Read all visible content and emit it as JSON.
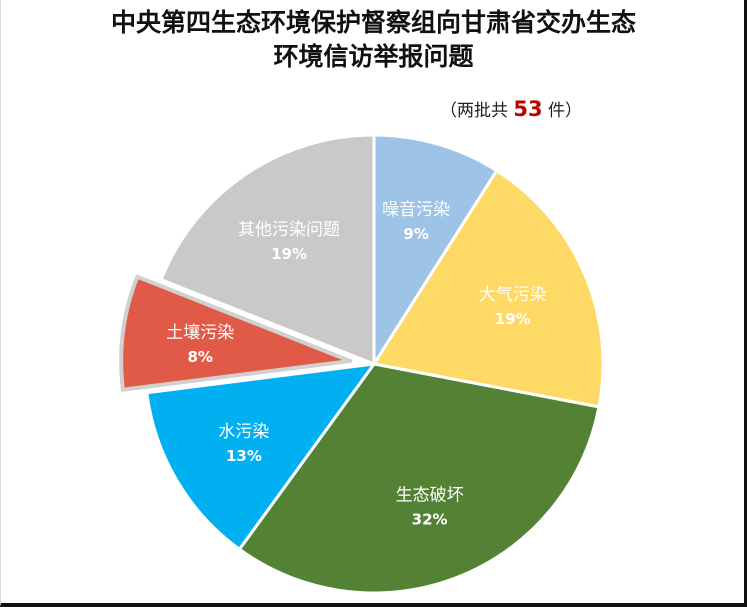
{
  "title_line1": "中央第四生态环境保护督察组向甘肃省交办生态",
  "title_line2": "环境信访举报问题",
  "total": {
    "prefix": "（两批共 ",
    "count": "53",
    "suffix": " 件）"
  },
  "chart_data": {
    "type": "pie",
    "title": "中央第四生态环境保护督察组向甘肃省交办生态环境信访举报问题",
    "slices": [
      {
        "name": "噪音污染",
        "percent": 9,
        "label": "9%",
        "color": "#9DC3E6",
        "exploded": false
      },
      {
        "name": "大气污染",
        "percent": 19,
        "label": "19%",
        "color": "#FFD966",
        "exploded": false
      },
      {
        "name": "生态破坏",
        "percent": 32,
        "label": "32%",
        "color": "#548235",
        "exploded": false
      },
      {
        "name": "水污染",
        "percent": 13,
        "label": "13%",
        "color": "#00B0F0",
        "exploded": false
      },
      {
        "name": "土壤污染",
        "percent": 8,
        "label": "8%",
        "color": "#E05A47",
        "exploded": true
      },
      {
        "name": "其他污染问题",
        "percent": 19,
        "label": "19%",
        "color": "#C9C9C9",
        "exploded": false
      }
    ]
  }
}
